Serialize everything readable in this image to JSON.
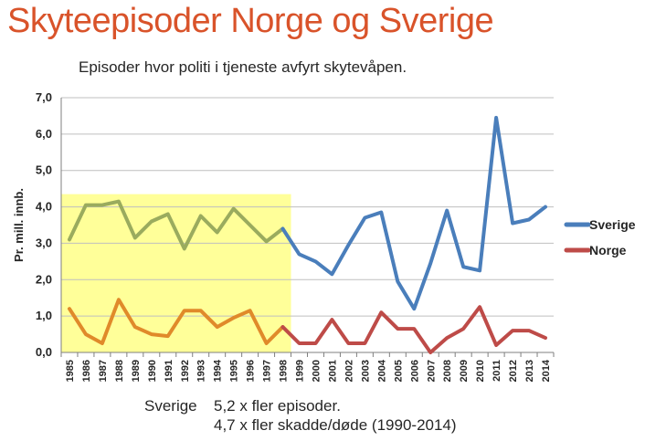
{
  "title": "Skyteepisoder Norge og Sverige",
  "subtitle": "Episoder hvor politi i tjeneste avfyrt skytevåpen.",
  "caption": {
    "lead": "Sverige",
    "line1": "5,2 x fler episoder.",
    "line2": "4,7 x fler skadde/døde (1990-2014)"
  },
  "chart_data": {
    "type": "line",
    "ylabel": "Pr. mill. innb.",
    "ylim": [
      0,
      7
    ],
    "yticks": [
      "0,0",
      "1,0",
      "2,0",
      "3,0",
      "4,0",
      "5,0",
      "6,0",
      "7,0"
    ],
    "grid": true,
    "legend": "right",
    "highlight": {
      "from": "1985",
      "to": "1998",
      "y_top": 4.35,
      "color": "#ffff99"
    },
    "categories": [
      "1985",
      "1986",
      "1987",
      "1988",
      "1989",
      "1990",
      "1991",
      "1992",
      "1993",
      "1994",
      "1995",
      "1996",
      "1997",
      "1998",
      "1999",
      "2000",
      "2001",
      "2002",
      "2003",
      "2004",
      "2005",
      "2006",
      "2007",
      "2008",
      "2009",
      "2010",
      "2011",
      "2012",
      "2013",
      "2014"
    ],
    "series": [
      {
        "name": "Sverige",
        "color": "#4a7ebb",
        "highlight_color": "#9aab5e",
        "values": [
          3.1,
          4.05,
          4.05,
          4.15,
          3.15,
          3.6,
          3.8,
          2.85,
          3.75,
          3.3,
          3.95,
          3.5,
          3.05,
          3.4,
          2.7,
          2.5,
          2.15,
          2.95,
          3.7,
          3.85,
          1.95,
          1.2,
          2.45,
          3.9,
          2.35,
          2.25,
          6.45,
          3.55,
          3.65,
          4.0
        ]
      },
      {
        "name": "Norge",
        "color": "#be4b48",
        "highlight_color": "#e08a2a",
        "values": [
          1.2,
          0.5,
          0.25,
          1.45,
          0.7,
          0.5,
          0.45,
          1.15,
          1.15,
          0.7,
          0.95,
          1.15,
          0.25,
          0.7,
          0.25,
          0.25,
          0.9,
          0.25,
          0.25,
          1.1,
          0.65,
          0.65,
          0.0,
          0.4,
          0.65,
          1.25,
          0.2,
          0.6,
          0.6,
          0.4
        ]
      }
    ]
  }
}
